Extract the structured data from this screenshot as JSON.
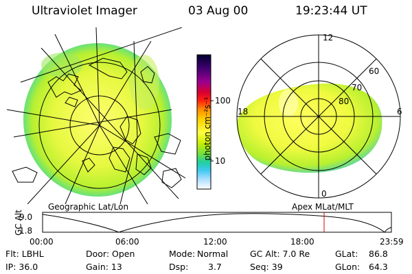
{
  "header": {
    "title": "Ultraviolet Imager",
    "date": "03 Aug 00",
    "time": "19:23:44 UT"
  },
  "colorbar": {
    "unit_label": "photon cm⁻²s⁻¹",
    "ticks": [
      "100",
      "10"
    ],
    "colors": [
      "#000040",
      "#300060",
      "#800080",
      "#c00040",
      "#ff2000",
      "#ff8000",
      "#ffd000",
      "#ffff40",
      "#c0ff00",
      "#60e040",
      "#20d0a0",
      "#40c0ff",
      "#c0e0ff",
      "#ffffff"
    ]
  },
  "left_panel": {
    "caption": "Geographic Lat/Lon"
  },
  "right_panel": {
    "caption": "Apex MLat/MLT",
    "mlt_labels": {
      "top": "12",
      "left": "18",
      "right": "6",
      "bottom": "0"
    },
    "mlat_labels": [
      "60",
      "70",
      "80"
    ]
  },
  "altitude_plot": {
    "ylabel": "GC Alt",
    "yticks": [
      "9.0",
      "1.8"
    ],
    "xticks": [
      "00:00",
      "06:00",
      "12:00",
      "18:00",
      "23:59"
    ],
    "marker_color": "#e00000"
  },
  "info": {
    "row1": {
      "filter": "Flt: LBHL",
      "door": "Door: Open",
      "mode_label": "Mode:",
      "mode_value": "Normal",
      "gcalt": "GC Alt: 7.0 Re",
      "glat_label": "GLat:",
      "glat_value": "86.8"
    },
    "row2": {
      "ip": "IP: 36.0",
      "gain": "Gain: 13",
      "dsp_label": "Dsp:",
      "dsp_value": "3.7",
      "seq": "Seq: 39",
      "glon_label": "GLon:",
      "glon_value": "64.3"
    }
  }
}
